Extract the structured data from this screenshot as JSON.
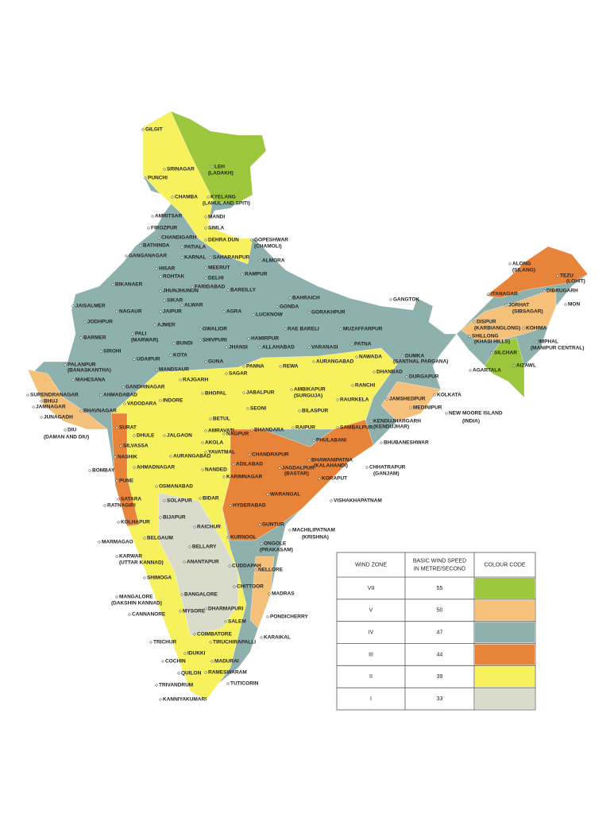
{
  "legend": {
    "headers": [
      "WIND ZONE",
      "BASIC WIND SPEED",
      "IN METRE/SECOND",
      "COLOUR CODE"
    ],
    "rows": [
      {
        "zone": "VII",
        "speed": 55,
        "color": "#9cc63c"
      },
      {
        "zone": "V",
        "speed": 50,
        "color": "#f5c07a"
      },
      {
        "zone": "IV",
        "speed": 47,
        "color": "#8fb1ae"
      },
      {
        "zone": "III",
        "speed": 44,
        "color": "#e8843a"
      },
      {
        "zone": "II",
        "speed": 39,
        "color": "#f7f15e"
      },
      {
        "zone": "I",
        "speed": 33,
        "color": "#d9dcca"
      }
    ]
  },
  "cities": [
    "GILGIT",
    "SRINAGAR",
    "LEH",
    "(LADAKH)",
    "PUNCHI",
    "CHAMBA",
    "KYELANG",
    "(LAHUL AND SPITI)",
    "AMRITSAR",
    "MANDI",
    "FIROZPUR",
    "SIMLA",
    "CHANDIGARH",
    "DEHRA DUN",
    "GOPESHWAR",
    "(CHAMOLI)",
    "BATHINDA",
    "PATIALA",
    "GANGANAGAR",
    "KARNAL",
    "SAHARANPUR",
    "ALMORA",
    "HISAR",
    "MEERUT",
    "ROHTAK",
    "DELHI",
    "RAMPUR",
    "FARIDABAD",
    "BIKANAER",
    "JHUNJHUNUN",
    "BAREILLY",
    "SIKAR",
    "ALWAR",
    "JAISALMER",
    "NAGAUR",
    "JAIPUR",
    "AGRA",
    "LUCKNOW",
    "GONDA",
    "BAHRAICH",
    "GORAKHPUR",
    "JODHPUR",
    "AJMER",
    "GWALIOR",
    "RAE BARELI",
    "MUZAFFARPUR",
    "PALI",
    "(MARWAR)",
    "SHIVPURI",
    "HAMIRPUR",
    "BARMER",
    "BUNDI",
    "JHANSI",
    "ALLAHABAD",
    "VARANASI",
    "PATNA",
    "SIROHI",
    "KOTA",
    "UDAIPUR",
    "GUNA",
    "PANNA",
    "REWA",
    "AURANGABAD",
    "NAWADA",
    "PALANPUR",
    "(BANASKANTHA)",
    "MANDSAUR",
    "SAGAR",
    "GANGTOK",
    "DUMKA",
    "(SANTHAL PARGANA)",
    "DHANBAD",
    "DURGAPUR",
    "RANCHI",
    "AMBIKAPUR",
    "(SURGUJA)",
    "JAMSHEDPUR",
    "KOLKATA",
    "MAHESANA",
    "GANDHINAGAR",
    "RAJGARH",
    "BHOPAL",
    "JABALPUR",
    "BHUJ",
    "SURENDRANAGAR",
    "AHMADABAD",
    "VADODARA",
    "INDORE",
    "SEONI",
    "BILASPUR",
    "RAURKELA",
    "JAMNAGAR",
    "BHAVNAGAR",
    "JUNAGADH",
    "KENDUJHARGARH",
    "(KENDUJHAR)",
    "MEDINIPUR",
    "NEW MOORE ISLAND",
    "(INDIA)",
    "DIU",
    "(DAMAN AND DIU)",
    "SURAT",
    "BETUL",
    "BHANDARA",
    "RAIPUR",
    "SAMBALPUR",
    "DHULE",
    "JALGAON",
    "AMRAVATI",
    "NAGPUR",
    "PHULABANI",
    "SILVASSA",
    "AKOLA",
    "YAVATMAL",
    "BHUBANESHWAR",
    "NASHIK",
    "AURANGABAD",
    "CHANDRAPUR",
    "BHAWANIPATNA",
    "(KALAHANDI)",
    "BOMBAY",
    "AHMADNAGAR",
    "NANDED",
    "ADILABAD",
    "JAGDALPUR",
    "(BASTAR)",
    "CHHATRAPUR",
    "(GANJAM)",
    "PUNE",
    "KARIMNAGAR",
    "KORAPUT",
    "OSMANABAD",
    "SATARA",
    "SOLAPUR",
    "BIDAR",
    "WARANGAL",
    "VISHAKHAPATNAM",
    "RATNAGIRI",
    "HYDERABAD",
    "KOLHAPUR",
    "BIJAPUR",
    "RAICHUR",
    "GUNTUR",
    "MACHILIPATNAM",
    "(KRISHNA)",
    "BELGAUM",
    "KURNOOL",
    "ONGOLE",
    "(PRAKASAM)",
    "MARMAGAO",
    "BELLARY",
    "KARWAR",
    "(UTTAR KANNAD)",
    "ANANTAPUR",
    "CUDDAPAH",
    "NELLORE",
    "SHIMOGA",
    "CHITTOOR",
    "MADRAS",
    "MANGALORE",
    "(DAKSHIN KANNAD)",
    "BANGALORE",
    "DHARMAPURI",
    "MYSORE",
    "PONDICHERRY",
    "CANNANORE",
    "SALEM",
    "COIMBATORE",
    "KARAIKAL",
    "TRICHUR",
    "TIRUCHIRAPALLI",
    "IDUKKI",
    "COCHIN",
    "MADURAI",
    "QUILON",
    "RAMESWARAM",
    "TUTICORIN",
    "TRIVANDRUM",
    "KANNIYAKUMARI",
    "ALONG",
    "(SILANG)",
    "TEZU",
    "(LOHIT)",
    "ITANAGAR",
    "DIBRUGARH",
    "JORHAT",
    "(SIBSAGAR)",
    "MON",
    "DISPUR",
    "(KARBIANGLONG)",
    "KOHIMA",
    "SHILLONG",
    "(KHASI HILLS)",
    "IMPHAL",
    "(MANIPUR CENTRAL)",
    "SILCHAR",
    "AIZAWL",
    "AGARTALA"
  ]
}
